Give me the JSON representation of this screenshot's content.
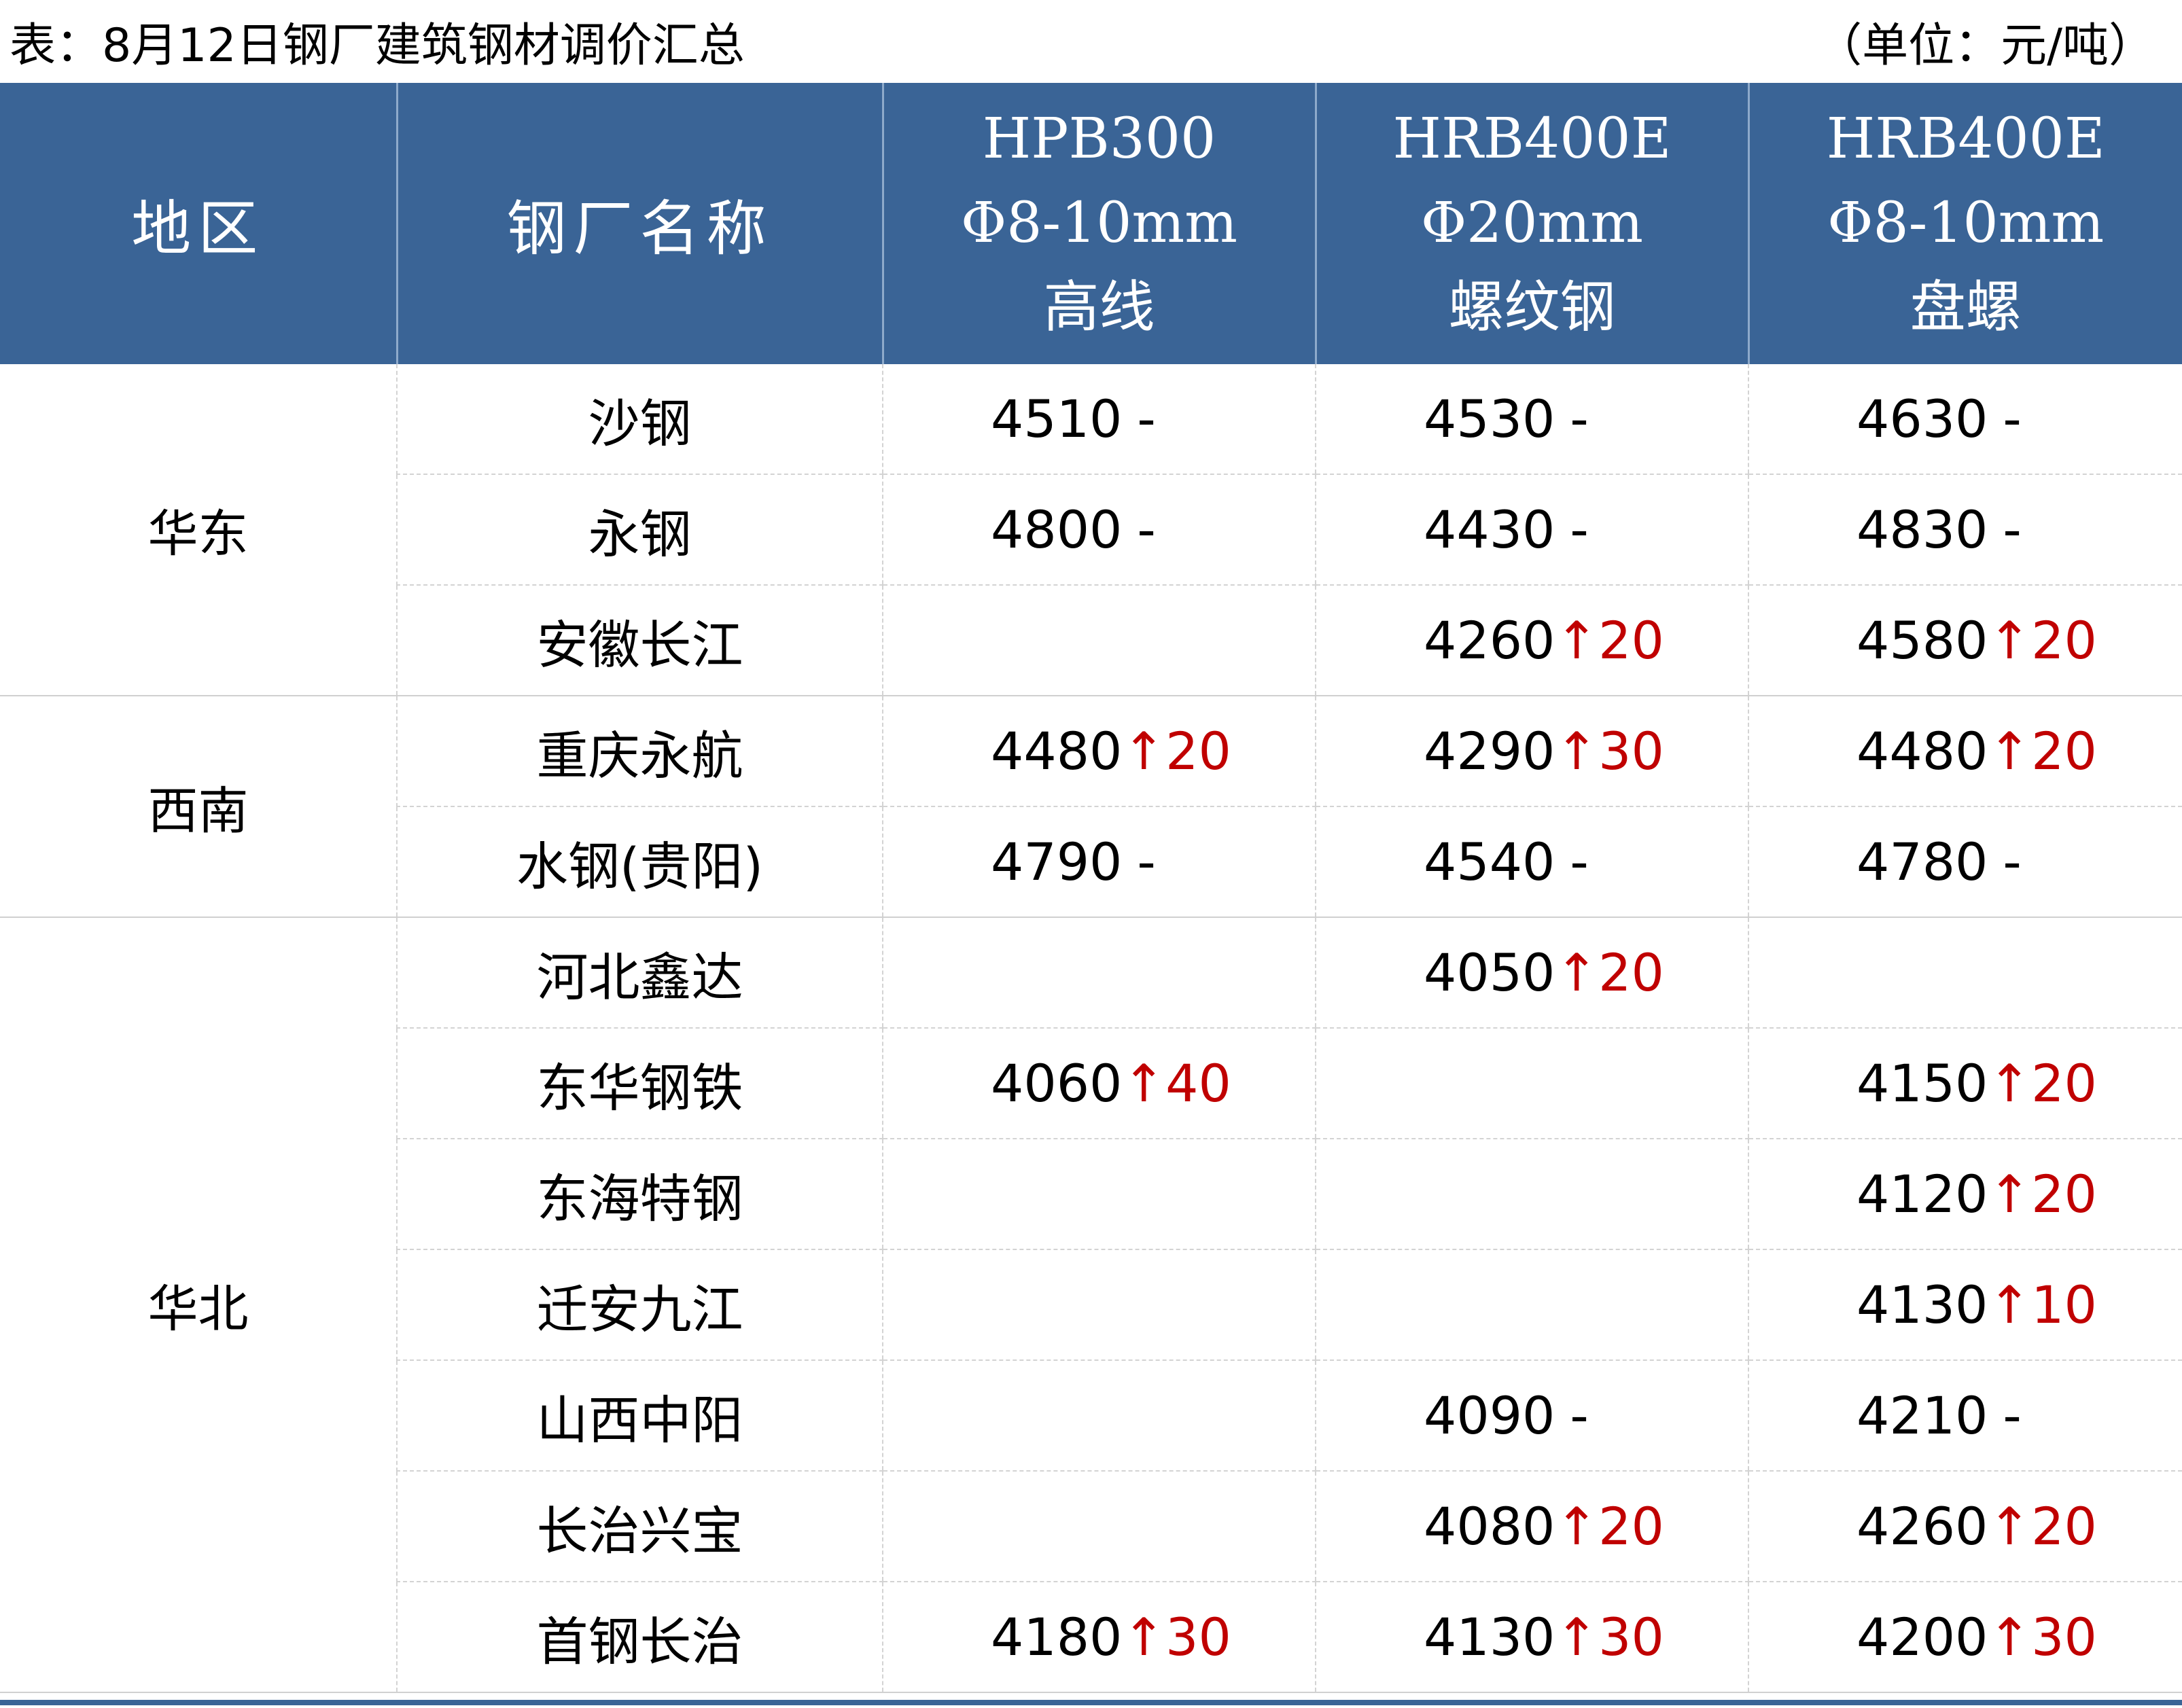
{
  "caption": {
    "title": "表：8月12日钢厂建筑钢材调价汇总",
    "unit": "（单位：元/吨）"
  },
  "header": {
    "region": "地区",
    "mill": "钢厂名称",
    "columns": [
      {
        "line1": "HPB300",
        "line2": "Φ8-10mm",
        "line3": "高线"
      },
      {
        "line1": "HRB400E",
        "line2": "Φ20mm",
        "line3": "螺纹钢"
      },
      {
        "line1": "HRB400E",
        "line2": "Φ8-10mm",
        "line3": "盘螺"
      }
    ]
  },
  "regions": [
    "华东",
    "西南",
    "华北"
  ],
  "rows": [
    {
      "mill": "沙钢",
      "cells": [
        {
          "price": "4510",
          "change": "-"
        },
        {
          "price": "4530",
          "change": "-"
        },
        {
          "price": "4630",
          "change": "-"
        }
      ]
    },
    {
      "mill": "永钢",
      "cells": [
        {
          "price": "4800",
          "change": "-"
        },
        {
          "price": "4430",
          "change": "-"
        },
        {
          "price": "4830",
          "change": "-"
        }
      ]
    },
    {
      "mill": "安徽长江",
      "cells": [
        {
          "price": "",
          "change": ""
        },
        {
          "price": "4260",
          "change": "↑20"
        },
        {
          "price": "4580",
          "change": "↑20"
        }
      ]
    },
    {
      "mill": "重庆永航",
      "cells": [
        {
          "price": "4480",
          "change": "↑20"
        },
        {
          "price": "4290",
          "change": "↑30"
        },
        {
          "price": "4480",
          "change": "↑20"
        }
      ]
    },
    {
      "mill": "水钢(贵阳)",
      "cells": [
        {
          "price": "4790",
          "change": "-"
        },
        {
          "price": "4540",
          "change": "-"
        },
        {
          "price": "4780",
          "change": "-"
        }
      ]
    },
    {
      "mill": "河北鑫达",
      "cells": [
        {
          "price": "",
          "change": ""
        },
        {
          "price": "4050",
          "change": "↑20"
        },
        {
          "price": "",
          "change": ""
        }
      ]
    },
    {
      "mill": "东华钢铁",
      "cells": [
        {
          "price": "4060",
          "change": "↑40"
        },
        {
          "price": "",
          "change": ""
        },
        {
          "price": "4150",
          "change": "↑20"
        }
      ]
    },
    {
      "mill": "东海特钢",
      "cells": [
        {
          "price": "",
          "change": ""
        },
        {
          "price": "",
          "change": ""
        },
        {
          "price": "4120",
          "change": "↑20"
        }
      ]
    },
    {
      "mill": "迁安九江",
      "cells": [
        {
          "price": "",
          "change": ""
        },
        {
          "price": "",
          "change": ""
        },
        {
          "price": "4130",
          "change": "↑10"
        }
      ]
    },
    {
      "mill": "山西中阳",
      "cells": [
        {
          "price": "",
          "change": ""
        },
        {
          "price": "4090",
          "change": "-"
        },
        {
          "price": "4210",
          "change": "-"
        }
      ]
    },
    {
      "mill": "长治兴宝",
      "cells": [
        {
          "price": "",
          "change": ""
        },
        {
          "price": "4080",
          "change": "↑20"
        },
        {
          "price": "4260",
          "change": "↑20"
        }
      ]
    },
    {
      "mill": "首钢长治",
      "cells": [
        {
          "price": "4180",
          "change": "↑30"
        },
        {
          "price": "4130",
          "change": "↑30"
        },
        {
          "price": "4200",
          "change": "↑30"
        }
      ]
    }
  ],
  "colors": {
    "header_bg": "#3a6496",
    "header_text": "#ffffff",
    "up_change": "#c00000",
    "grid": "#d3d3d3"
  }
}
